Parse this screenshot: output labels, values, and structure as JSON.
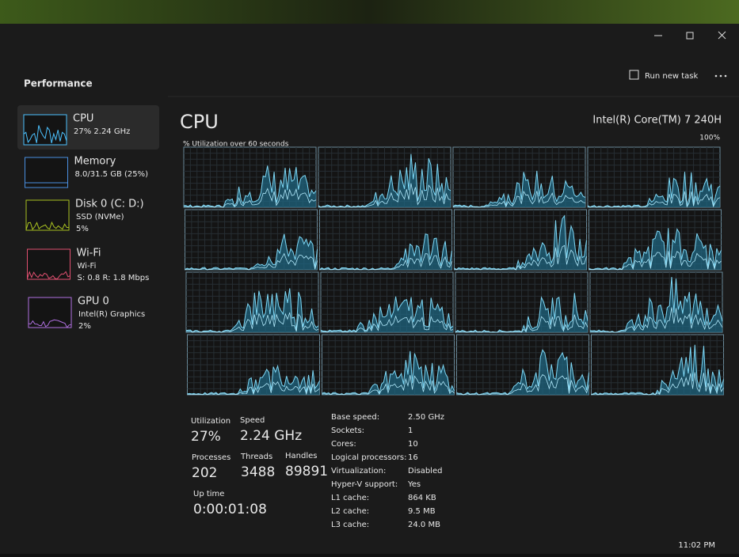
{
  "window": {
    "title": "Performance",
    "run_new_task": "Run new task"
  },
  "sidebar": [
    {
      "name": "CPU",
      "details": [
        "27%  2.24 GHz"
      ]
    },
    {
      "name": "Memory",
      "details": [
        "8.0/31.5 GB (25%)"
      ]
    },
    {
      "name": "Disk 0 (C: D:)",
      "details": [
        "SSD (NVMe)",
        "5%"
      ]
    },
    {
      "name": "Wi-Fi",
      "details": [
        "Wi-Fi",
        "S: 0.8  R: 1.8 Mbps"
      ]
    },
    {
      "name": "GPU 0",
      "details": [
        "Intel(R) Graphics",
        "2%"
      ]
    }
  ],
  "main": {
    "title": "CPU",
    "processor": "Intel(R) Core(TM) 7 240H",
    "graph_label": "% Utilization over 60 seconds",
    "graph_max": "100%"
  },
  "stats": [
    {
      "label": "Utilization",
      "value": "27%"
    },
    {
      "label": "Speed",
      "value": "2.24 GHz"
    },
    {
      "label": "Processes",
      "value": "202"
    },
    {
      "label": "Threads",
      "value": "3488"
    },
    {
      "label": "Handles",
      "value": "89891"
    },
    {
      "label": "Up time",
      "value": "0:00:01:08"
    }
  ],
  "specs": [
    [
      "Base speed:",
      "2.50 GHz"
    ],
    [
      "Sockets:",
      "1"
    ],
    [
      "Cores:",
      "10"
    ],
    [
      "Logical processors:",
      "16"
    ],
    [
      "Virtualization:",
      "Disabled"
    ],
    [
      "Hyper-V support:",
      "Yes"
    ],
    [
      "L1 cache:",
      "864 KB"
    ],
    [
      "L2 cache:",
      "9.5 MB"
    ],
    [
      "L3 cache:",
      "24.0 MB"
    ]
  ],
  "clock": "11:02 PM"
}
